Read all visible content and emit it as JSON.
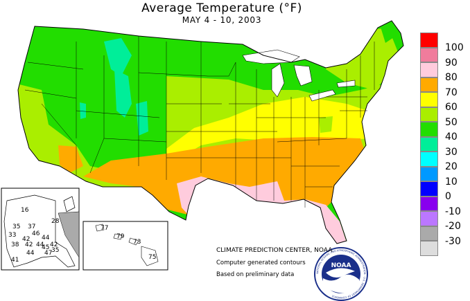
{
  "title": "Average Temperature (°F)",
  "subtitle": "MAY 4 - 10, 2003",
  "legend": [
    {
      "label": "100",
      "color": "#ff0000"
    },
    {
      "label": "90",
      "color": "#f07c9c"
    },
    {
      "label": "80",
      "color": "#ffccdd"
    },
    {
      "label": "70",
      "color": "#ffaa00"
    },
    {
      "label": "60",
      "color": "#ffff00"
    },
    {
      "label": "50",
      "color": "#aaee00"
    },
    {
      "label": "40",
      "color": "#22dd00"
    },
    {
      "label": "30",
      "color": "#00ee99"
    },
    {
      "label": "20",
      "color": "#00ffff"
    },
    {
      "label": "10",
      "color": "#0099ff"
    },
    {
      "label": "0",
      "color": "#0000ff"
    },
    {
      "label": "-10",
      "color": "#8800ee"
    },
    {
      "label": "-20",
      "color": "#bb77ff"
    },
    {
      "label": "-30",
      "color": "#aaaaaa"
    },
    {
      "label": "",
      "color": "#dddddd"
    }
  ],
  "alaska_labels": [
    "16",
    "28",
    "35",
    "37",
    "33",
    "46",
    "42",
    "44",
    "38",
    "42",
    "44",
    "42",
    "45",
    "44",
    "47",
    "41",
    "35"
  ],
  "hawaii_labels": [
    "77",
    "79",
    "73",
    "75"
  ],
  "credits": {
    "line1": "CLIMATE PREDICTION CENTER, NOAA",
    "line2": "Computer generated contours",
    "line3": "Based on preliminary data"
  },
  "logo": {
    "text": "NOAA",
    "ring_text": "NATIONAL OCEANIC AND ATMOSPHERIC ADMINISTRATION · U.S. DEPARTMENT OF COMMERCE"
  }
}
